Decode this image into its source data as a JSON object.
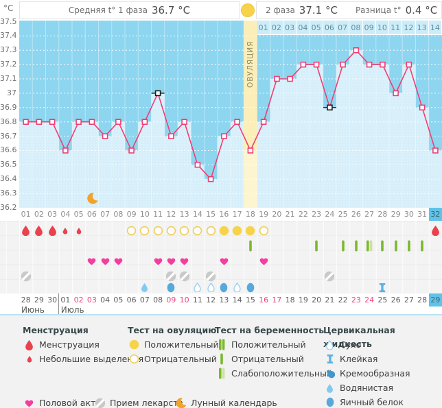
{
  "header": {
    "unit_label": "°C",
    "avg1_label": "Средняя t° 1 фаза",
    "avg1_value": "36.7 °C",
    "avg2_label": "2 фаза",
    "avg2_value": "37.1 °C",
    "diff_label": "Разница t°",
    "diff_value": "0.4 °C"
  },
  "chart_data": {
    "type": "line",
    "title": "Basal body temperature cycle chart",
    "ylabel": "°C",
    "ylim": [
      36.2,
      37.5
    ],
    "yticks": [
      "37.5",
      "37.4",
      "37.3",
      "37.2",
      "37.1",
      "37",
      "36.9",
      "36.8",
      "36.7",
      "36.6",
      "36.5",
      "36.4",
      "36.3",
      "36.2"
    ],
    "x_day_labels": [
      "01",
      "02",
      "03",
      "04",
      "05",
      "06",
      "07",
      "08",
      "09",
      "10",
      "11",
      "12",
      "13",
      "14",
      "15",
      "16",
      "17",
      "18",
      "19",
      "20",
      "21",
      "22",
      "23",
      "24",
      "25",
      "26",
      "27",
      "28",
      "29",
      "30",
      "31",
      "32"
    ],
    "temps": [
      36.8,
      36.8,
      36.8,
      36.6,
      36.8,
      36.8,
      36.7,
      36.8,
      36.6,
      36.8,
      37.0,
      36.7,
      36.8,
      36.5,
      36.4,
      36.7,
      36.8,
      36.6,
      36.8,
      37.1,
      37.1,
      37.2,
      37.2,
      36.9,
      37.2,
      37.3,
      37.2,
      37.2,
      37.0,
      37.2,
      36.9,
      36.6
    ],
    "disturbed_days": [
      11,
      24
    ],
    "ovulation": {
      "day": 18,
      "label": "ОВУЛЯЦИЯ"
    },
    "phase2": {
      "start_day": 19,
      "labels": [
        "01",
        "02",
        "03",
        "04",
        "05",
        "06",
        "07",
        "08",
        "09",
        "10",
        "11",
        "12",
        "13",
        "14"
      ]
    },
    "moon_day": 6,
    "current_day": 32,
    "grid": "dotted-horizontal",
    "legend_position": "bottom"
  },
  "events": {
    "menstruation": [
      1,
      2,
      3,
      32
    ],
    "spotting": [
      4,
      5
    ],
    "ovulation_test_negative": [
      9,
      10,
      11,
      12,
      13,
      14,
      15,
      19
    ],
    "ovulation_test_positive": [
      16,
      17,
      18
    ],
    "pregnancy_test_negative": [
      18,
      23,
      25,
      26,
      28,
      29,
      30,
      31
    ],
    "pregnancy_test_weak_positive": [
      27
    ],
    "intercourse": [
      6,
      7,
      8,
      11,
      12,
      13,
      16,
      19
    ],
    "medication": [
      1,
      12,
      13,
      15,
      24
    ],
    "cervical_dry": [
      14,
      15,
      17
    ],
    "cervical_sticky": [
      28
    ],
    "cervical_watery": [
      10
    ],
    "cervical_eggwhite": [
      12,
      16,
      18
    ]
  },
  "dates": {
    "labels": [
      "28",
      "29",
      "30",
      "01",
      "02",
      "03",
      "04",
      "05",
      "06",
      "07",
      "08",
      "09",
      "10",
      "11",
      "12",
      "13",
      "14",
      "15",
      "16",
      "17",
      "18",
      "19",
      "20",
      "21",
      "22",
      "23",
      "24",
      "25",
      "26",
      "27",
      "28",
      "29"
    ],
    "weekend_days": [
      5,
      6,
      12,
      13,
      19,
      20,
      26,
      27
    ],
    "highlighted_day": 32,
    "months": [
      {
        "label": "Июнь",
        "from_day": 1
      },
      {
        "label": "Июль",
        "from_day": 4
      }
    ]
  },
  "legend": {
    "groups": [
      {
        "title": "Менструация",
        "items": [
          {
            "icon": "drop-red-big",
            "label": "Менструация"
          },
          {
            "icon": "drop-red-small",
            "label": "Небольшие выделения"
          }
        ]
      },
      {
        "title": "Тест на овуляцию",
        "items": [
          {
            "icon": "ovu-pos",
            "label": "Положительный"
          },
          {
            "icon": "ovu-neg",
            "label": "Отрицательный"
          }
        ]
      },
      {
        "title": "Тест на беременность",
        "items": [
          {
            "icon": "preg-pos",
            "label": "Положительный"
          },
          {
            "icon": "preg-neg",
            "label": "Отрицательный"
          },
          {
            "icon": "preg-weak",
            "label": "Слабоположительный"
          }
        ]
      },
      {
        "title": "Цервикальная жидкость",
        "items": [
          {
            "icon": "fluid-dry",
            "label": "Сухо"
          },
          {
            "icon": "fluid-sticky",
            "label": "Клейкая"
          },
          {
            "icon": "fluid-creamy",
            "label": "Кремообразная"
          },
          {
            "icon": "fluid-watery",
            "label": "Водянистая"
          },
          {
            "icon": "fluid-eggwhite",
            "label": "Яичный белок"
          }
        ]
      }
    ],
    "footer_items": [
      {
        "icon": "heart",
        "label": "Половой акт"
      },
      {
        "icon": "pill",
        "label": "Прием лекарств"
      },
      {
        "icon": "moon",
        "label": "Лунный календарь"
      }
    ]
  },
  "colors": {
    "sky": "#8ed6f0",
    "bar_fill": "#d6effa",
    "bar_dot": "#e9f8fd",
    "band": "#fceeb8",
    "band_light": "#fdf5d0",
    "line": "#ee3e73",
    "marker_black": "#1a1a1a",
    "yellow_circle": "#f6d34b",
    "yellow_outline": "#f0d060",
    "red_drop": "#e8424e",
    "heart": "#f43d9e",
    "pill": "#c9c9c9",
    "moon": "#f2a32b",
    "green_bar": "#7cb82f",
    "green_bar_pale": "#cde1a2",
    "fluid_dry": "#92cef0",
    "fluid_sticky": "#5cb2e2",
    "fluid_creamy": "#4198ce",
    "fluid_watery": "#85c9ef",
    "fluid_eggwhite": "#57a9dc",
    "highlight_cell": "#5fc3e9"
  }
}
